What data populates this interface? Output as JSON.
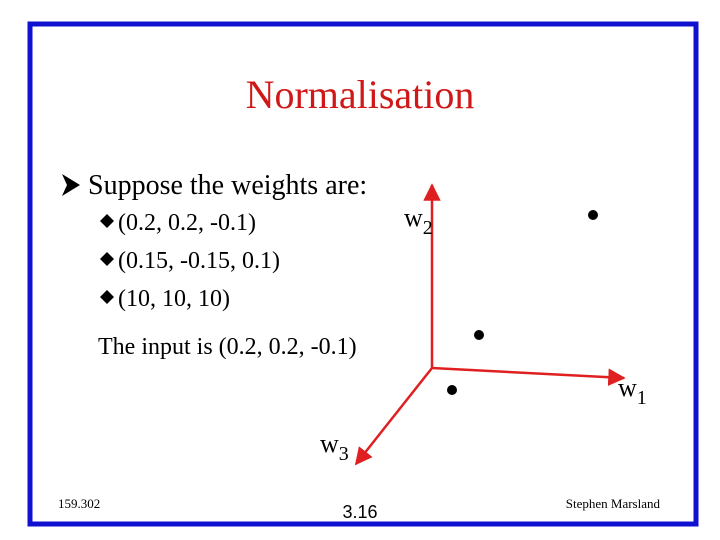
{
  "slide": {
    "title": "Normalisation",
    "bullet": "Suppose the weights are:",
    "sub_bullets": [
      "(0.2, 0.2, -0.1)",
      "(0.15, -0.15, 0.1)",
      "(10, 10, 10)"
    ],
    "input_line": "The input is (0.2, 0.2, -0.1)",
    "axes": [
      {
        "base": "w",
        "sub": "1"
      },
      {
        "base": "w",
        "sub": "2"
      },
      {
        "base": "w",
        "sub": "3"
      }
    ],
    "footer": {
      "left": "159.302",
      "center": "3.16",
      "right": "Stephen Marsland"
    }
  }
}
